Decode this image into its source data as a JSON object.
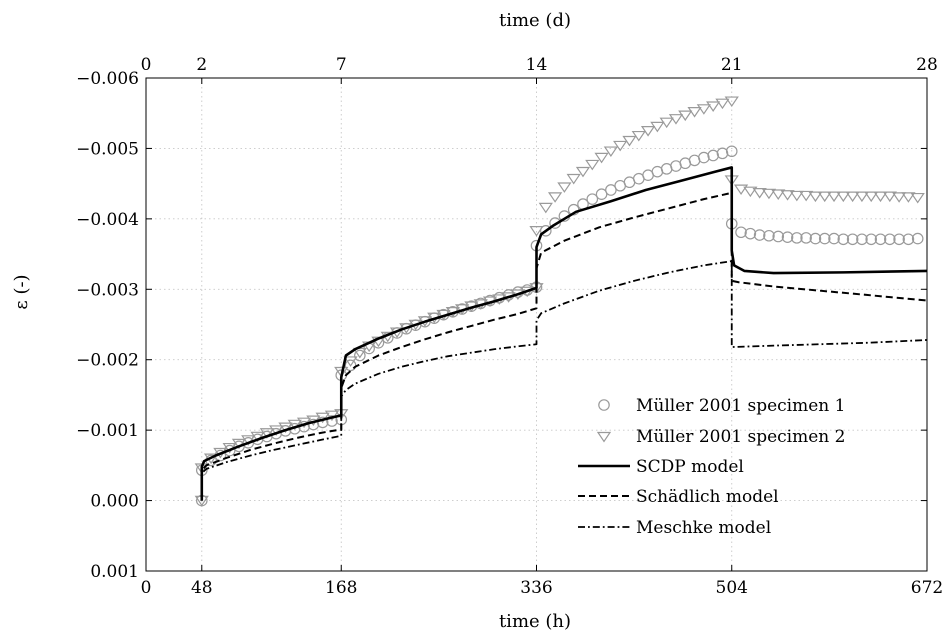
{
  "chart_data": {
    "type": "line",
    "xlabel": "time (h)",
    "x2label": "time (d)",
    "ylabel": "ε (-)",
    "xlim": [
      0,
      672
    ],
    "ylim": [
      0.001,
      -0.006
    ],
    "x_ticks": [
      0,
      48,
      168,
      336,
      504,
      672
    ],
    "x_tick_labels": [
      "0",
      "48",
      "168",
      "336",
      "504",
      "672"
    ],
    "x2_ticks": [
      0,
      2,
      7,
      14,
      21,
      28
    ],
    "x2_tick_labels": [
      "0",
      "2",
      "7",
      "14",
      "21",
      "28"
    ],
    "y_ticks": [
      -0.006,
      -0.005,
      -0.004,
      -0.003,
      -0.002,
      -0.001,
      0.0,
      0.001
    ],
    "y_tick_labels": [
      "−0.006",
      "−0.005",
      "−0.004",
      "−0.003",
      "−0.002",
      "−0.001",
      "0.000",
      "0.001"
    ],
    "grid": true,
    "legend_position": "bottom-right",
    "colors": {
      "markers": "#9a9a9a",
      "lines": "#000000",
      "grid": "#c8c8c8"
    },
    "series": [
      {
        "name": "Müller 2001 specimen 1",
        "style": "circle",
        "points": [
          [
            48,
            0.0
          ],
          [
            48,
            -0.00043
          ],
          [
            56,
            -0.00057
          ],
          [
            64,
            -0.00064
          ],
          [
            72,
            -0.00071
          ],
          [
            80,
            -0.00077
          ],
          [
            88,
            -0.00082
          ],
          [
            96,
            -0.00087
          ],
          [
            104,
            -0.00091
          ],
          [
            112,
            -0.00095
          ],
          [
            120,
            -0.00099
          ],
          [
            128,
            -0.00102
          ],
          [
            136,
            -0.00105
          ],
          [
            144,
            -0.00108
          ],
          [
            152,
            -0.00111
          ],
          [
            160,
            -0.00113
          ],
          [
            168,
            -0.00115
          ],
          [
            168,
            -0.00178
          ],
          [
            176,
            -0.00192
          ],
          [
            184,
            -0.00206
          ],
          [
            192,
            -0.00216
          ],
          [
            200,
            -0.00224
          ],
          [
            208,
            -0.00231
          ],
          [
            216,
            -0.00238
          ],
          [
            224,
            -0.00244
          ],
          [
            232,
            -0.00249
          ],
          [
            240,
            -0.00254
          ],
          [
            248,
            -0.00259
          ],
          [
            256,
            -0.00264
          ],
          [
            264,
            -0.00268
          ],
          [
            272,
            -0.00272
          ],
          [
            280,
            -0.00276
          ],
          [
            288,
            -0.0028
          ],
          [
            296,
            -0.00284
          ],
          [
            304,
            -0.00288
          ],
          [
            312,
            -0.00292
          ],
          [
            320,
            -0.00296
          ],
          [
            328,
            -0.00299
          ],
          [
            336,
            -0.00303
          ],
          [
            336,
            -0.00362
          ],
          [
            344,
            -0.00383
          ],
          [
            352,
            -0.00394
          ],
          [
            360,
            -0.00404
          ],
          [
            368,
            -0.00413
          ],
          [
            376,
            -0.00421
          ],
          [
            384,
            -0.00428
          ],
          [
            392,
            -0.00435
          ],
          [
            400,
            -0.00441
          ],
          [
            408,
            -0.00447
          ],
          [
            416,
            -0.00452
          ],
          [
            424,
            -0.00457
          ],
          [
            432,
            -0.00462
          ],
          [
            440,
            -0.00467
          ],
          [
            448,
            -0.00471
          ],
          [
            456,
            -0.00475
          ],
          [
            464,
            -0.00479
          ],
          [
            472,
            -0.00483
          ],
          [
            480,
            -0.00487
          ],
          [
            488,
            -0.0049
          ],
          [
            496,
            -0.00493
          ],
          [
            504,
            -0.00496
          ],
          [
            504,
            -0.00393
          ],
          [
            512,
            -0.00381
          ],
          [
            520,
            -0.00379
          ],
          [
            528,
            -0.00377
          ],
          [
            536,
            -0.00376
          ],
          [
            544,
            -0.00375
          ],
          [
            552,
            -0.00374
          ],
          [
            560,
            -0.00373
          ],
          [
            568,
            -0.00373
          ],
          [
            576,
            -0.00372
          ],
          [
            584,
            -0.00372
          ],
          [
            592,
            -0.00372
          ],
          [
            600,
            -0.00371
          ],
          [
            608,
            -0.00371
          ],
          [
            616,
            -0.00371
          ],
          [
            624,
            -0.00371
          ],
          [
            632,
            -0.00371
          ],
          [
            640,
            -0.00371
          ],
          [
            648,
            -0.00371
          ],
          [
            656,
            -0.00371
          ],
          [
            664,
            -0.00372
          ]
        ]
      },
      {
        "name": "Müller 2001 specimen 2",
        "style": "triangle-down",
        "points": [
          [
            48,
            -1e-05
          ],
          [
            48,
            -0.00047
          ],
          [
            56,
            -0.00061
          ],
          [
            64,
            -0.00069
          ],
          [
            72,
            -0.00076
          ],
          [
            80,
            -0.00082
          ],
          [
            88,
            -0.00087
          ],
          [
            96,
            -0.00092
          ],
          [
            104,
            -0.00097
          ],
          [
            112,
            -0.00101
          ],
          [
            120,
            -0.00105
          ],
          [
            128,
            -0.00109
          ],
          [
            136,
            -0.00112
          ],
          [
            144,
            -0.00115
          ],
          [
            152,
            -0.00119
          ],
          [
            160,
            -0.00122
          ],
          [
            168,
            -0.00124
          ],
          [
            168,
            -0.00184
          ],
          [
            176,
            -0.00199
          ],
          [
            184,
            -0.00211
          ],
          [
            192,
            -0.0022
          ],
          [
            200,
            -0.00227
          ],
          [
            208,
            -0.00234
          ],
          [
            216,
            -0.0024
          ],
          [
            224,
            -0.00246
          ],
          [
            232,
            -0.00251
          ],
          [
            240,
            -0.00256
          ],
          [
            248,
            -0.00261
          ],
          [
            256,
            -0.00265
          ],
          [
            264,
            -0.00269
          ],
          [
            272,
            -0.00273
          ],
          [
            280,
            -0.00277
          ],
          [
            288,
            -0.0028
          ],
          [
            296,
            -0.00284
          ],
          [
            304,
            -0.00287
          ],
          [
            312,
            -0.0029
          ],
          [
            320,
            -0.00294
          ],
          [
            328,
            -0.00298
          ],
          [
            336,
            -0.00303
          ],
          [
            336,
            -0.00384
          ],
          [
            344,
            -0.00417
          ],
          [
            352,
            -0.00432
          ],
          [
            360,
            -0.00446
          ],
          [
            368,
            -0.00458
          ],
          [
            376,
            -0.00468
          ],
          [
            384,
            -0.00478
          ],
          [
            392,
            -0.00488
          ],
          [
            400,
            -0.00497
          ],
          [
            408,
            -0.00505
          ],
          [
            416,
            -0.00512
          ],
          [
            424,
            -0.00519
          ],
          [
            432,
            -0.00526
          ],
          [
            440,
            -0.00532
          ],
          [
            448,
            -0.00538
          ],
          [
            456,
            -0.00543
          ],
          [
            464,
            -0.00548
          ],
          [
            472,
            -0.00553
          ],
          [
            480,
            -0.00557
          ],
          [
            488,
            -0.00561
          ],
          [
            496,
            -0.00565
          ],
          [
            504,
            -0.00568
          ],
          [
            504,
            -0.00456
          ],
          [
            512,
            -0.00443
          ],
          [
            520,
            -0.0044
          ],
          [
            528,
            -0.00438
          ],
          [
            536,
            -0.00437
          ],
          [
            544,
            -0.00436
          ],
          [
            552,
            -0.00435
          ],
          [
            560,
            -0.00434
          ],
          [
            568,
            -0.00434
          ],
          [
            576,
            -0.00433
          ],
          [
            584,
            -0.00433
          ],
          [
            592,
            -0.00433
          ],
          [
            600,
            -0.00433
          ],
          [
            608,
            -0.00433
          ],
          [
            616,
            -0.00433
          ],
          [
            624,
            -0.00433
          ],
          [
            632,
            -0.00433
          ],
          [
            640,
            -0.00433
          ],
          [
            648,
            -0.00432
          ],
          [
            656,
            -0.00432
          ],
          [
            664,
            -0.00431
          ]
        ]
      },
      {
        "name": "SCDP model",
        "style": "solid",
        "points": [
          [
            48,
            0.0
          ],
          [
            48,
            -0.00048
          ],
          [
            50,
            -0.00056
          ],
          [
            60,
            -0.00064
          ],
          [
            80,
            -0.00077
          ],
          [
            100,
            -0.00089
          ],
          [
            120,
            -0.001
          ],
          [
            140,
            -0.0011
          ],
          [
            160,
            -0.00118
          ],
          [
            168,
            -0.00121
          ],
          [
            168,
            -0.00175
          ],
          [
            172,
            -0.00206
          ],
          [
            180,
            -0.00215
          ],
          [
            200,
            -0.0023
          ],
          [
            220,
            -0.00243
          ],
          [
            240,
            -0.00254
          ],
          [
            260,
            -0.00264
          ],
          [
            280,
            -0.00274
          ],
          [
            300,
            -0.00283
          ],
          [
            320,
            -0.00293
          ],
          [
            336,
            -0.00302
          ],
          [
            336,
            -0.0036
          ],
          [
            340,
            -0.00378
          ],
          [
            350,
            -0.0039
          ],
          [
            370,
            -0.0041
          ],
          [
            400,
            -0.00425
          ],
          [
            430,
            -0.00441
          ],
          [
            460,
            -0.00454
          ],
          [
            490,
            -0.00467
          ],
          [
            504,
            -0.00473
          ],
          [
            504,
            -0.00355
          ],
          [
            506,
            -0.00334
          ],
          [
            515,
            -0.00326
          ],
          [
            540,
            -0.00323
          ],
          [
            600,
            -0.00324
          ],
          [
            672,
            -0.00326
          ]
        ]
      },
      {
        "name": "Schädlich model",
        "style": "dashed",
        "points": [
          [
            48,
            0.0
          ],
          [
            48,
            -0.00043
          ],
          [
            52,
            -0.0005
          ],
          [
            70,
            -0.00061
          ],
          [
            90,
            -0.00072
          ],
          [
            110,
            -0.00081
          ],
          [
            130,
            -0.00089
          ],
          [
            150,
            -0.00096
          ],
          [
            168,
            -0.00101
          ],
          [
            168,
            -0.0016
          ],
          [
            172,
            -0.00178
          ],
          [
            180,
            -0.0019
          ],
          [
            200,
            -0.00206
          ],
          [
            220,
            -0.00218
          ],
          [
            240,
            -0.00229
          ],
          [
            260,
            -0.00239
          ],
          [
            280,
            -0.00248
          ],
          [
            300,
            -0.00257
          ],
          [
            320,
            -0.00265
          ],
          [
            336,
            -0.00273
          ],
          [
            336,
            -0.0033
          ],
          [
            340,
            -0.00352
          ],
          [
            360,
            -0.00369
          ],
          [
            390,
            -0.00388
          ],
          [
            420,
            -0.00402
          ],
          [
            450,
            -0.00415
          ],
          [
            480,
            -0.00428
          ],
          [
            504,
            -0.00437
          ],
          [
            504,
            -0.00312
          ],
          [
            510,
            -0.0031
          ],
          [
            540,
            -0.00304
          ],
          [
            580,
            -0.00298
          ],
          [
            620,
            -0.00292
          ],
          [
            672,
            -0.00284
          ]
        ]
      },
      {
        "name": "Meschke model",
        "style": "dash-dot",
        "points": [
          [
            48,
            0.0
          ],
          [
            48,
            -0.00039
          ],
          [
            52,
            -0.00045
          ],
          [
            70,
            -0.00055
          ],
          [
            90,
            -0.00064
          ],
          [
            110,
            -0.00072
          ],
          [
            130,
            -0.00079
          ],
          [
            150,
            -0.00086
          ],
          [
            168,
            -0.00092
          ],
          [
            168,
            -0.00148
          ],
          [
            172,
            -0.00157
          ],
          [
            180,
            -0.00166
          ],
          [
            200,
            -0.0018
          ],
          [
            220,
            -0.0019
          ],
          [
            240,
            -0.00198
          ],
          [
            260,
            -0.00205
          ],
          [
            280,
            -0.0021
          ],
          [
            300,
            -0.00215
          ],
          [
            320,
            -0.00219
          ],
          [
            336,
            -0.00222
          ],
          [
            336,
            -0.00256
          ],
          [
            340,
            -0.00266
          ],
          [
            360,
            -0.0028
          ],
          [
            390,
            -0.00298
          ],
          [
            420,
            -0.00312
          ],
          [
            450,
            -0.00324
          ],
          [
            480,
            -0.00334
          ],
          [
            504,
            -0.0034
          ],
          [
            504,
            -0.00218
          ],
          [
            540,
            -0.0022
          ],
          [
            580,
            -0.00222
          ],
          [
            620,
            -0.00224
          ],
          [
            672,
            -0.00228
          ]
        ]
      }
    ]
  }
}
